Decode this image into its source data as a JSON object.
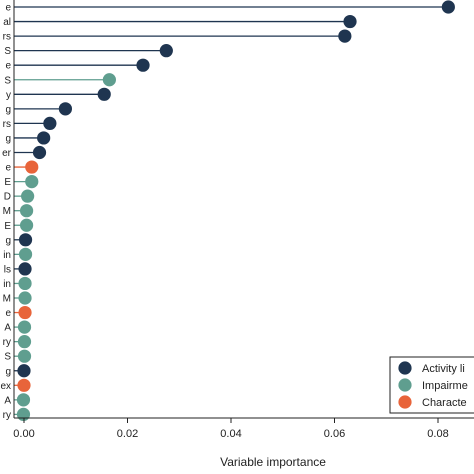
{
  "chart_data": {
    "type": "lollipop",
    "title": "",
    "xlabel": "Variable importance",
    "ylabel": "",
    "xlim": [
      -0.004,
      0.086
    ],
    "xticks": [
      "0.00",
      "0.02",
      "0.04",
      "0.06",
      "0.08"
    ],
    "xtick_values": [
      0.0,
      0.02,
      0.04,
      0.06,
      0.08
    ],
    "grid": false,
    "legend_position": "bottom-right",
    "series": [
      {
        "name": "Activity li",
        "color": "#1f3550"
      },
      {
        "name": "Impairme",
        "color": "#5f9e8f"
      },
      {
        "name": "Characte",
        "color": "#e8643a"
      }
    ],
    "points": [
      {
        "label": "e",
        "value": 0.082,
        "group": 0
      },
      {
        "label": "al",
        "value": 0.063,
        "group": 0
      },
      {
        "label": "rs",
        "value": 0.062,
        "group": 0
      },
      {
        "label": "S",
        "value": 0.0275,
        "group": 0
      },
      {
        "label": "e",
        "value": 0.023,
        "group": 0
      },
      {
        "label": "S",
        "value": 0.0165,
        "group": 1
      },
      {
        "label": "y",
        "value": 0.0155,
        "group": 0
      },
      {
        "label": "g",
        "value": 0.008,
        "group": 0
      },
      {
        "label": "rs",
        "value": 0.005,
        "group": 0
      },
      {
        "label": "g",
        "value": 0.0038,
        "group": 0
      },
      {
        "label": "er",
        "value": 0.003,
        "group": 0
      },
      {
        "label": "e",
        "value": 0.0015,
        "group": 2
      },
      {
        "label": "E",
        "value": 0.0015,
        "group": 1
      },
      {
        "label": "D",
        "value": 0.0007,
        "group": 1
      },
      {
        "label": "M",
        "value": 0.0005,
        "group": 1
      },
      {
        "label": "E",
        "value": 0.0005,
        "group": 1
      },
      {
        "label": "g",
        "value": 0.0003,
        "group": 0
      },
      {
        "label": "in",
        "value": 0.0003,
        "group": 1
      },
      {
        "label": "ls",
        "value": 0.0002,
        "group": 0
      },
      {
        "label": "in",
        "value": 0.0002,
        "group": 1
      },
      {
        "label": "M",
        "value": 0.0002,
        "group": 1
      },
      {
        "label": "e",
        "value": 0.0002,
        "group": 2
      },
      {
        "label": "A",
        "value": 0.0001,
        "group": 1
      },
      {
        "label": "ry",
        "value": 0.0001,
        "group": 1
      },
      {
        "label": "S",
        "value": 0.0001,
        "group": 1
      },
      {
        "label": "g",
        "value": 0.0,
        "group": 0
      },
      {
        "label": "ex",
        "value": 0.0,
        "group": 2
      },
      {
        "label": "A",
        "value": -0.0001,
        "group": 1
      },
      {
        "label": "ry",
        "value": -0.0001,
        "group": 1
      }
    ]
  }
}
